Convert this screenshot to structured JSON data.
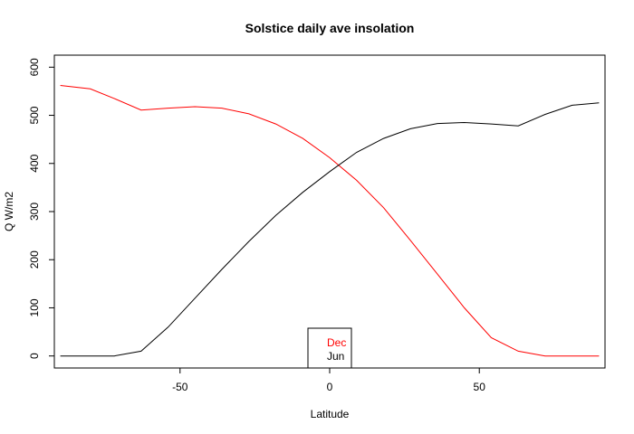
{
  "chart_data": {
    "type": "line",
    "title": "Solstice daily ave insolation",
    "xlabel": "Latitude",
    "ylabel": "Q W/m2",
    "xlim": [
      -92,
      92
    ],
    "ylim": [
      -25,
      625
    ],
    "xticks": [
      -50,
      0,
      50
    ],
    "yticks": [
      0,
      100,
      200,
      300,
      400,
      500,
      600
    ],
    "grid": false,
    "legend_position": "bottom-center",
    "series": [
      {
        "name": "Dec",
        "color": "#ff0000",
        "x": [
          -90,
          -80,
          -72,
          -63,
          -54,
          -45,
          -36,
          -27,
          -18,
          -9,
          0,
          9,
          18,
          27,
          36,
          45,
          54,
          63,
          72,
          81,
          90
        ],
        "y": [
          562,
          555,
          535,
          511,
          515,
          518,
          515,
          503,
          482,
          452,
          412,
          365,
          308,
          240,
          170,
          100,
          38,
          10,
          0,
          0,
          0
        ]
      },
      {
        "name": "Jun",
        "color": "#000000",
        "x": [
          -90,
          -80,
          -72,
          -63,
          -54,
          -45,
          -36,
          -27,
          -18,
          -9,
          0,
          9,
          18,
          27,
          36,
          45,
          54,
          63,
          72,
          81,
          90
        ],
        "y": [
          0,
          0,
          0,
          10,
          60,
          120,
          180,
          238,
          292,
          340,
          383,
          423,
          452,
          472,
          483,
          485,
          482,
          478,
          502,
          521,
          526
        ]
      }
    ]
  }
}
